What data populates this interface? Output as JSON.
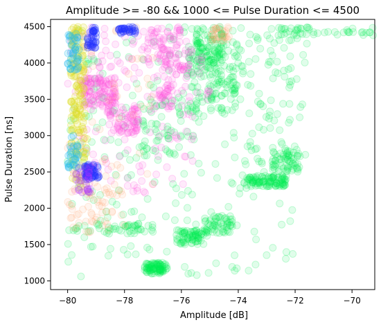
{
  "chart_data": {
    "type": "scatter",
    "title": "Amplitude >= -80 && 1000 <= Pulse Duration <= 4500",
    "xlabel": "Amplitude [dB]",
    "ylabel": "Pulse Duration [ns]",
    "xlim": [
      -80.6,
      -69.2
    ],
    "ylim": [
      880,
      4600
    ],
    "xticks": [
      -80,
      -78,
      -76,
      -74,
      -72,
      -70
    ],
    "xtick_labels": [
      "−80",
      "−78",
      "−76",
      "−74",
      "−72",
      "−70"
    ],
    "yticks": [
      1000,
      1500,
      2000,
      2500,
      3000,
      3500,
      4000,
      4500
    ],
    "ytick_labels": [
      "1000",
      "1500",
      "2000",
      "2500",
      "3000",
      "3500",
      "4000",
      "4500"
    ],
    "grid": false,
    "legend": false,
    "series": [
      {
        "color": "#00ee55",
        "opacity": 0.12,
        "clusters": [
          {
            "x": [
              -77.3,
              -76.5
            ],
            "y": [
              1100,
              1250
            ],
            "n": 90
          },
          {
            "x": [
              -76.2,
              -75.2
            ],
            "y": [
              1500,
              1700
            ],
            "n": 70
          },
          {
            "x": [
              -75.2,
              -74.2
            ],
            "y": [
              1650,
              1900
            ],
            "n": 60
          },
          {
            "x": [
              -73.8,
              -72.3
            ],
            "y": [
              2300,
              2450
            ],
            "n": 110
          },
          {
            "x": [
              -72.8,
              -71.8
            ],
            "y": [
              2500,
              2800
            ],
            "n": 60
          },
          {
            "x": [
              -75.8,
              -74.0
            ],
            "y": [
              3300,
              4300
            ],
            "n": 160
          },
          {
            "x": [
              -75.5,
              -74.5
            ],
            "y": [
              4000,
              4500
            ],
            "n": 80
          },
          {
            "x": [
              -77.5,
              -76.0
            ],
            "y": [
              2700,
              3500
            ],
            "n": 50
          },
          {
            "x": [
              -80.0,
              -77.0
            ],
            "y": [
              1650,
              1800
            ],
            "n": 50
          },
          {
            "x": [
              -73.0,
              -69.2
            ],
            "y": [
              4380,
              4500
            ],
            "n": 50
          },
          {
            "x": [
              -74.0,
              -71.5
            ],
            "y": [
              2600,
              4400
            ],
            "n": 60
          },
          {
            "x": [
              -80.0,
              -72.0
            ],
            "y": [
              1050,
              4500
            ],
            "n": 260
          }
        ]
      },
      {
        "color": "#ff55dd",
        "opacity": 0.12,
        "clusters": [
          {
            "x": [
              -79.5,
              -78.3
            ],
            "y": [
              3400,
              3800
            ],
            "n": 120
          },
          {
            "x": [
              -78.6,
              -77.5
            ],
            "y": [
              3000,
              3400
            ],
            "n": 70
          },
          {
            "x": [
              -77.2,
              -76.0
            ],
            "y": [
              3900,
              4500
            ],
            "n": 80
          },
          {
            "x": [
              -77.0,
              -75.0
            ],
            "y": [
              3500,
              4200
            ],
            "n": 50
          },
          {
            "x": [
              -76.8,
              -76.3
            ],
            "y": [
              3400,
              3700
            ],
            "n": 30
          },
          {
            "x": [
              -80.0,
              -75.5
            ],
            "y": [
              2200,
              4500
            ],
            "n": 150
          }
        ]
      },
      {
        "color": "#ff9966",
        "opacity": 0.1,
        "clusters": [
          {
            "x": [
              -80.0,
              -78.0
            ],
            "y": [
              1650,
              2300
            ],
            "n": 60
          },
          {
            "x": [
              -75.0,
              -74.3
            ],
            "y": [
              4300,
              4500
            ],
            "n": 30
          },
          {
            "x": [
              -80.0,
              -77.0
            ],
            "y": [
              2200,
              4500
            ],
            "n": 50
          }
        ]
      },
      {
        "color": "#dddd22",
        "opacity": 0.18,
        "clusters": [
          {
            "x": [
              -79.9,
              -79.4
            ],
            "y": [
              3000,
              4500
            ],
            "n": 120
          },
          {
            "x": [
              -79.9,
              -79.3
            ],
            "y": [
              2300,
              3000
            ],
            "n": 40
          }
        ]
      },
      {
        "color": "#2233ff",
        "opacity": 0.2,
        "clusters": [
          {
            "x": [
              -79.4,
              -78.9
            ],
            "y": [
              2400,
              2600
            ],
            "n": 50
          },
          {
            "x": [
              -79.3,
              -79.0
            ],
            "y": [
              4200,
              4500
            ],
            "n": 35
          },
          {
            "x": [
              -78.2,
              -77.6
            ],
            "y": [
              4400,
              4500
            ],
            "n": 30
          }
        ]
      },
      {
        "color": "#22bbee",
        "opacity": 0.18,
        "clusters": [
          {
            "x": [
              -80.0,
              -79.6
            ],
            "y": [
              3900,
              4400
            ],
            "n": 40
          },
          {
            "x": [
              -80.0,
              -79.6
            ],
            "y": [
              2500,
              3000
            ],
            "n": 30
          }
        ]
      },
      {
        "color": "#aa33ff",
        "opacity": 0.15,
        "clusters": [
          {
            "x": [
              -79.7,
              -79.2
            ],
            "y": [
              2200,
              2600
            ],
            "n": 30
          }
        ]
      }
    ]
  }
}
